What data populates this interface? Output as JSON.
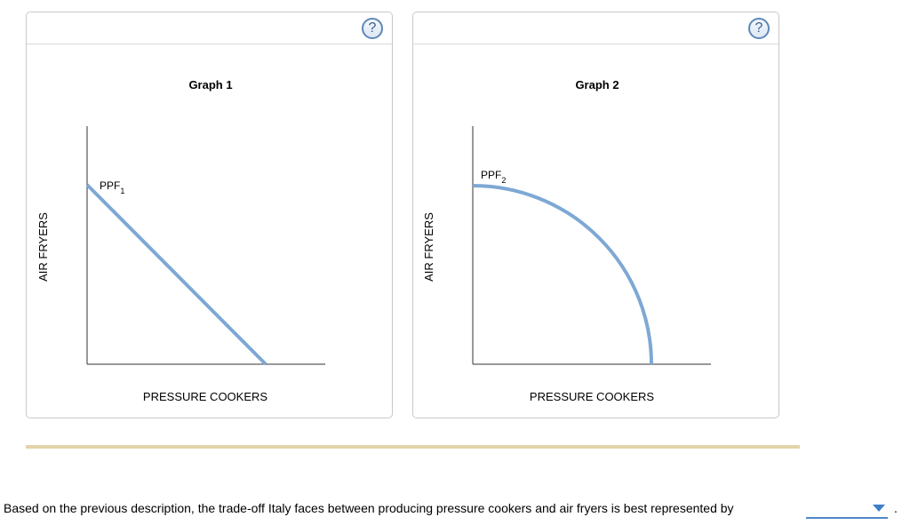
{
  "graph1": {
    "title": "Graph 1",
    "ylabel": "AIR FRYERS",
    "xlabel": "PRESSURE COOKERS",
    "curve_label": "PPF",
    "curve_subscript": "1",
    "help_label": "?"
  },
  "graph2": {
    "title": "Graph 2",
    "ylabel": "AIR FRYERS",
    "xlabel": "PRESSURE COOKERS",
    "curve_label": "PPF",
    "curve_subscript": "2",
    "help_label": "?"
  },
  "chart_data": [
    {
      "type": "line",
      "title": "Graph 1",
      "xlabel": "PRESSURE COOKERS",
      "ylabel": "AIR FRYERS",
      "series": [
        {
          "name": "PPF1",
          "shape": "straight",
          "x": [
            0,
            1
          ],
          "y": [
            1,
            0
          ]
        }
      ]
    },
    {
      "type": "line",
      "title": "Graph 2",
      "xlabel": "PRESSURE COOKERS",
      "ylabel": "AIR FRYERS",
      "series": [
        {
          "name": "PPF2",
          "shape": "concave (bowed outward)",
          "x": [
            0,
            1
          ],
          "y": [
            1,
            0
          ]
        }
      ]
    }
  ],
  "question": {
    "text": "Based on the previous description, the trade-off Italy faces between producing pressure cookers and air fryers is best represented by",
    "selected_value": "",
    "trailing": "."
  },
  "colors": {
    "curve": "#7ea8d4",
    "axis": "#333333",
    "divider": "#e2d3a8",
    "select_underline": "#4f86c6"
  }
}
